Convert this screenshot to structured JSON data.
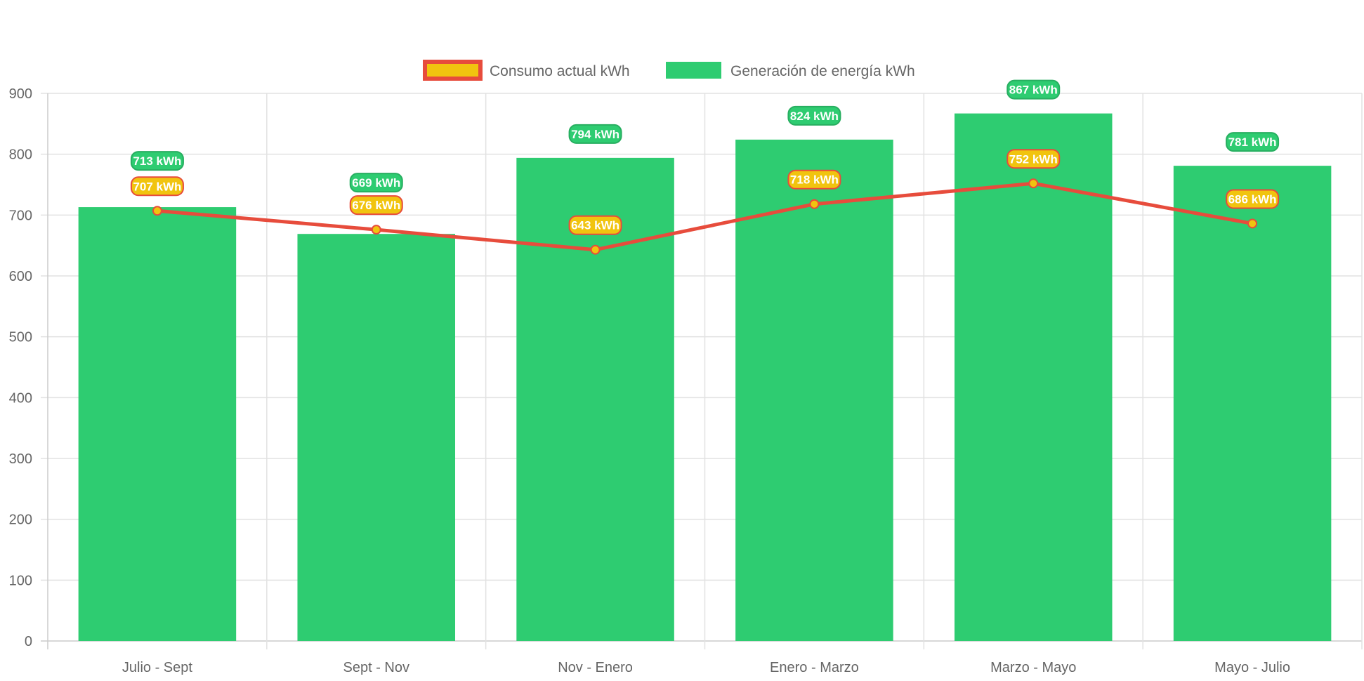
{
  "chart_data": {
    "type": "bar",
    "categories": [
      "Julio - Sept",
      "Sept - Nov",
      "Nov - Enero",
      "Enero - Marzo",
      "Marzo - Mayo",
      "Mayo - Julio"
    ],
    "series": [
      {
        "name": "Consumo actual kWh",
        "type": "line",
        "values": [
          707,
          676,
          643,
          718,
          752,
          686
        ],
        "color": "#e74c3c",
        "point_color": "#f1c40f"
      },
      {
        "name": "Generación de energía kWh",
        "type": "bar",
        "values": [
          713,
          669,
          794,
          824,
          867,
          781
        ],
        "color": "#2ecc71"
      }
    ],
    "label_suffix": " kWh",
    "ylim": [
      0,
      900
    ],
    "yticks": [
      0,
      100,
      200,
      300,
      400,
      500,
      600,
      700,
      800,
      900
    ],
    "grid": true,
    "legend_position": "top"
  }
}
